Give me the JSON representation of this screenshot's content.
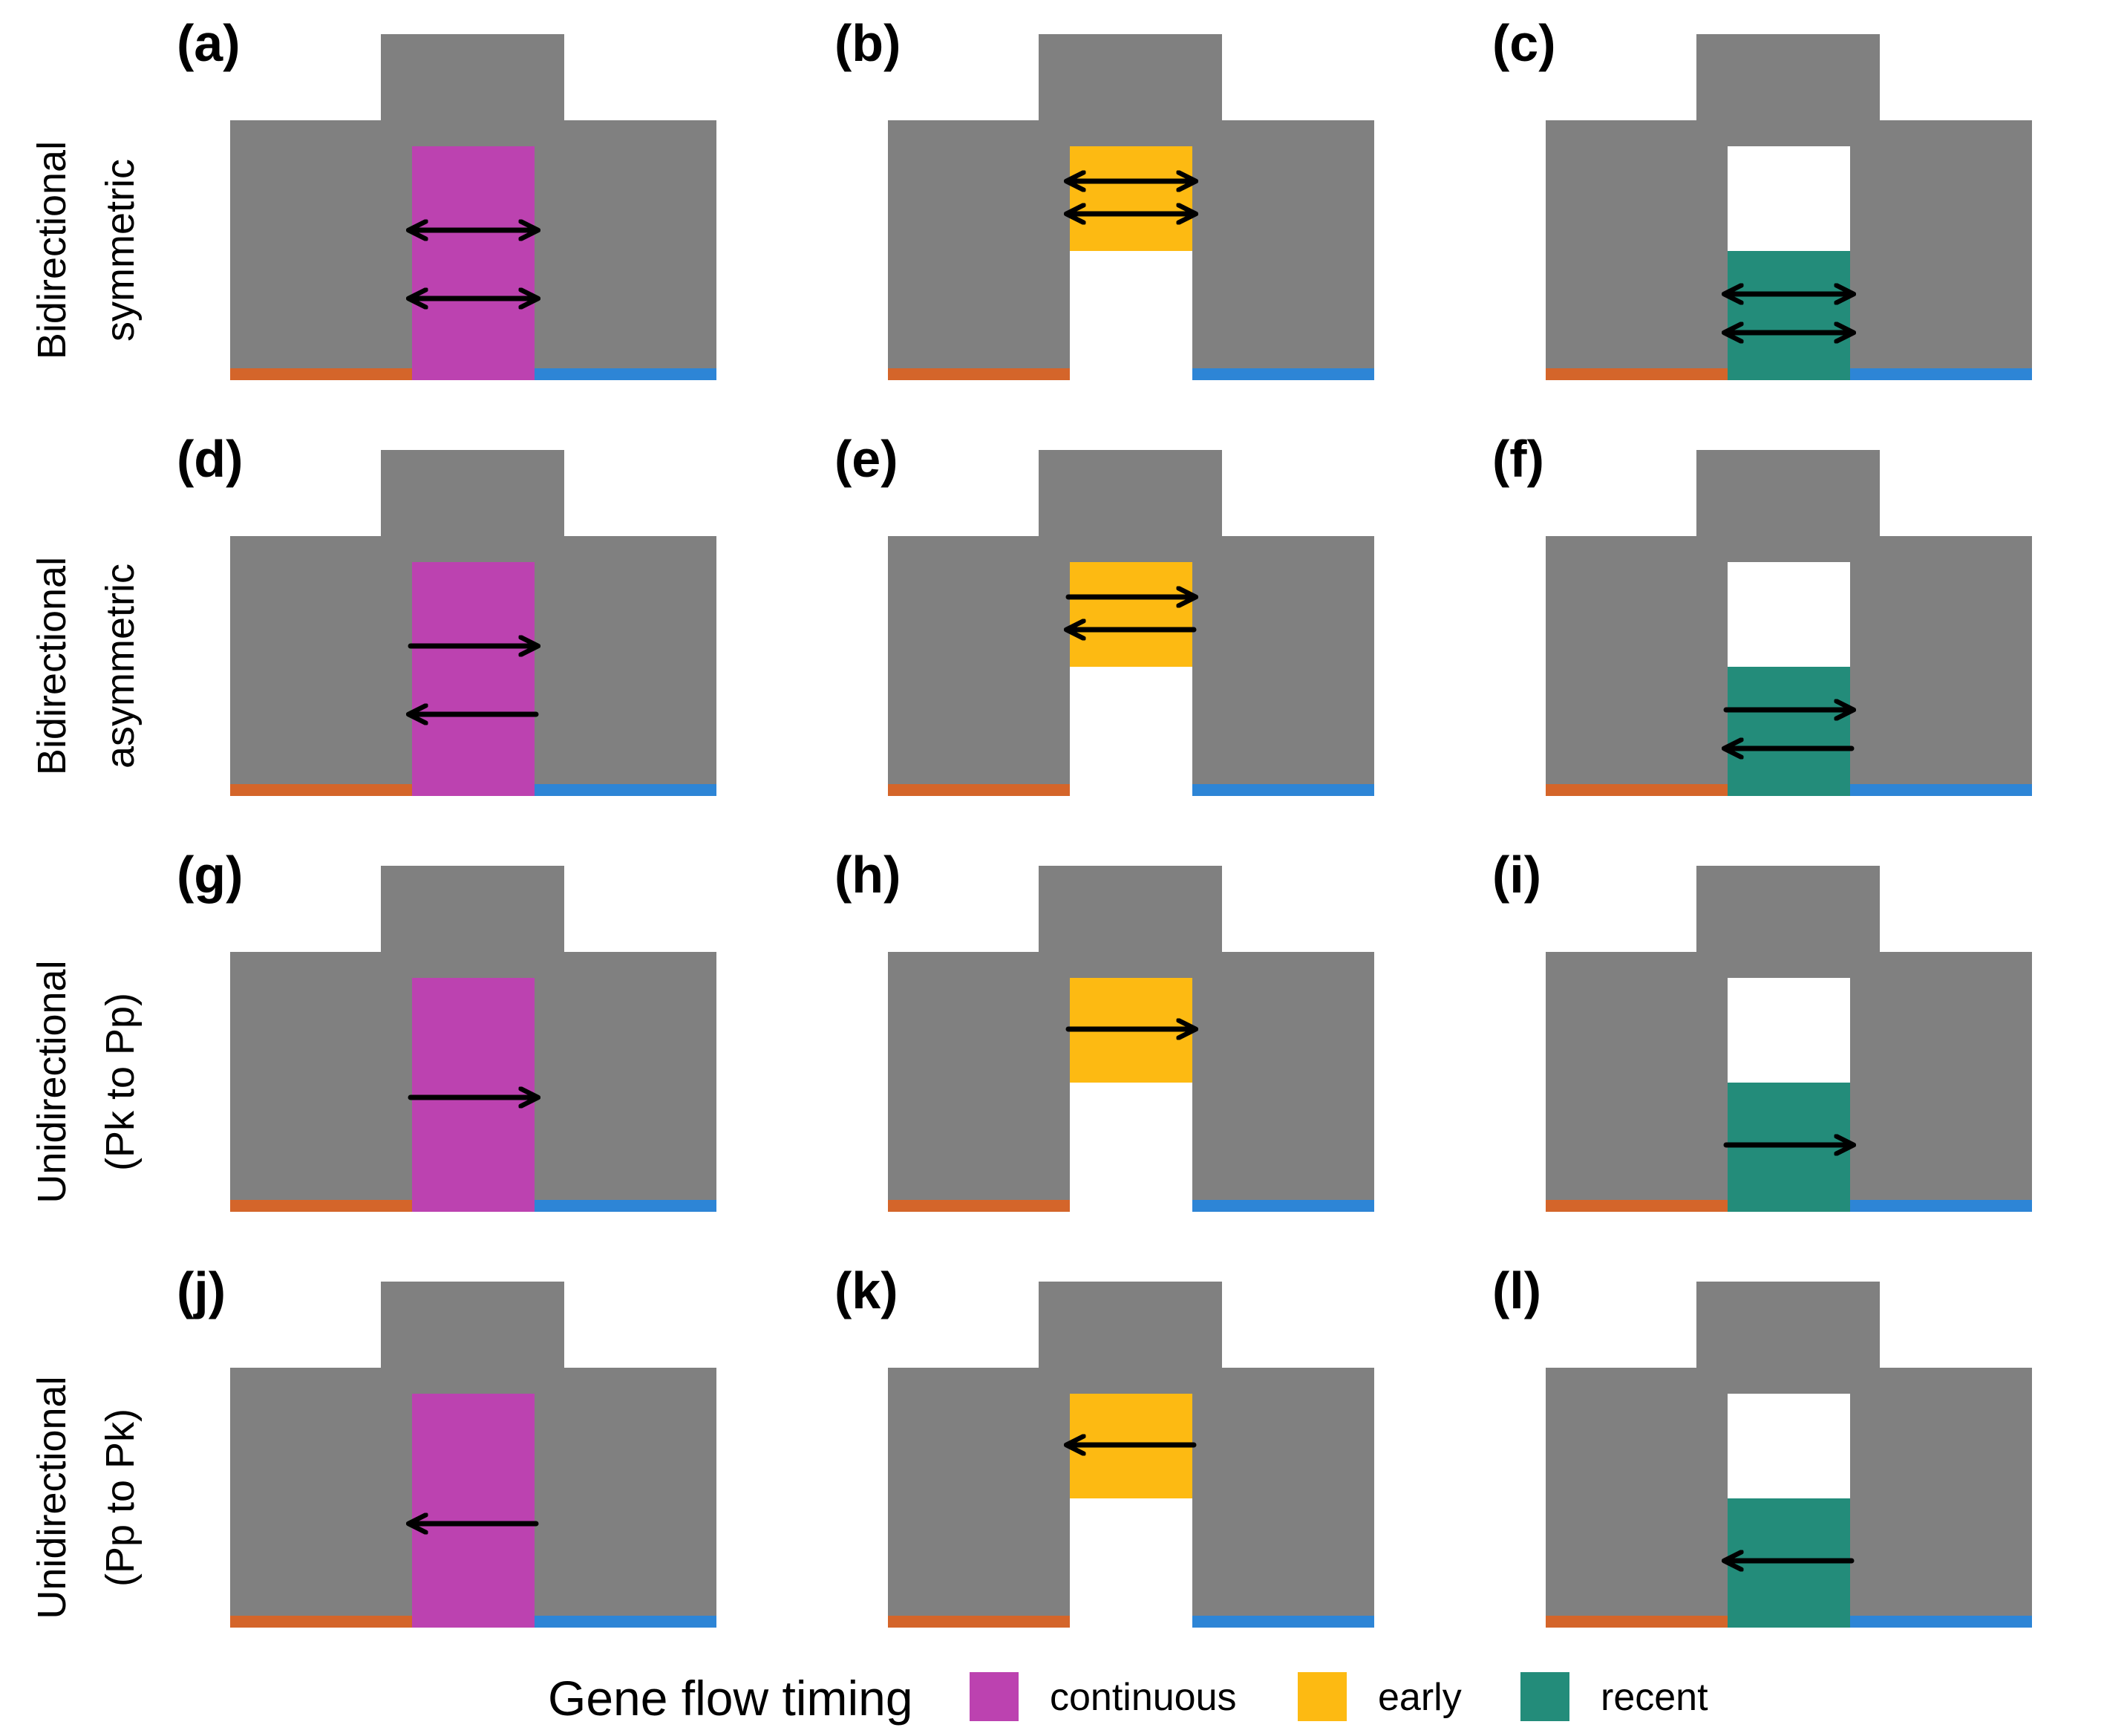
{
  "colors": {
    "tree": "#808080",
    "left_base": "#d4652a",
    "right_base": "#2d85d6",
    "arrow": "#000000",
    "gap": "#ffffff"
  },
  "timing_colors": {
    "continuous": "#bc42b0",
    "early": "#fdba12",
    "recent": "#238c7a"
  },
  "rows": [
    {
      "label_line1": "Bidirectional",
      "label_line2": "symmetric"
    },
    {
      "label_line1": "Bidirectional",
      "label_line2": "asymmetric"
    },
    {
      "label_line1": "Unidirectional",
      "label_line2": "(Pk to Pp)"
    },
    {
      "label_line1": "Unidirectional",
      "label_line2": "(Pp to Pk)"
    }
  ],
  "panels": [
    {
      "label": "(a)",
      "timing": "continuous",
      "arrows": [
        "both",
        "both"
      ]
    },
    {
      "label": "(b)",
      "timing": "early",
      "arrows": [
        "both",
        "both"
      ]
    },
    {
      "label": "(c)",
      "timing": "recent",
      "arrows": [
        "both",
        "both"
      ]
    },
    {
      "label": "(d)",
      "timing": "continuous",
      "arrows": [
        "right",
        "left"
      ]
    },
    {
      "label": "(e)",
      "timing": "early",
      "arrows": [
        "right",
        "left"
      ]
    },
    {
      "label": "(f)",
      "timing": "recent",
      "arrows": [
        "right",
        "left"
      ]
    },
    {
      "label": "(g)",
      "timing": "continuous",
      "arrows": [
        "right"
      ]
    },
    {
      "label": "(h)",
      "timing": "early",
      "arrows": [
        "right"
      ]
    },
    {
      "label": "(i)",
      "timing": "recent",
      "arrows": [
        "right"
      ]
    },
    {
      "label": "(j)",
      "timing": "continuous",
      "arrows": [
        "left"
      ]
    },
    {
      "label": "(k)",
      "timing": "early",
      "arrows": [
        "left"
      ]
    },
    {
      "label": "(l)",
      "timing": "recent",
      "arrows": [
        "left"
      ]
    }
  ],
  "legend": {
    "title": "Gene flow timing",
    "items": [
      {
        "key": "continuous",
        "label": "continuous"
      },
      {
        "key": "early",
        "label": "early"
      },
      {
        "key": "recent",
        "label": "recent"
      }
    ]
  }
}
